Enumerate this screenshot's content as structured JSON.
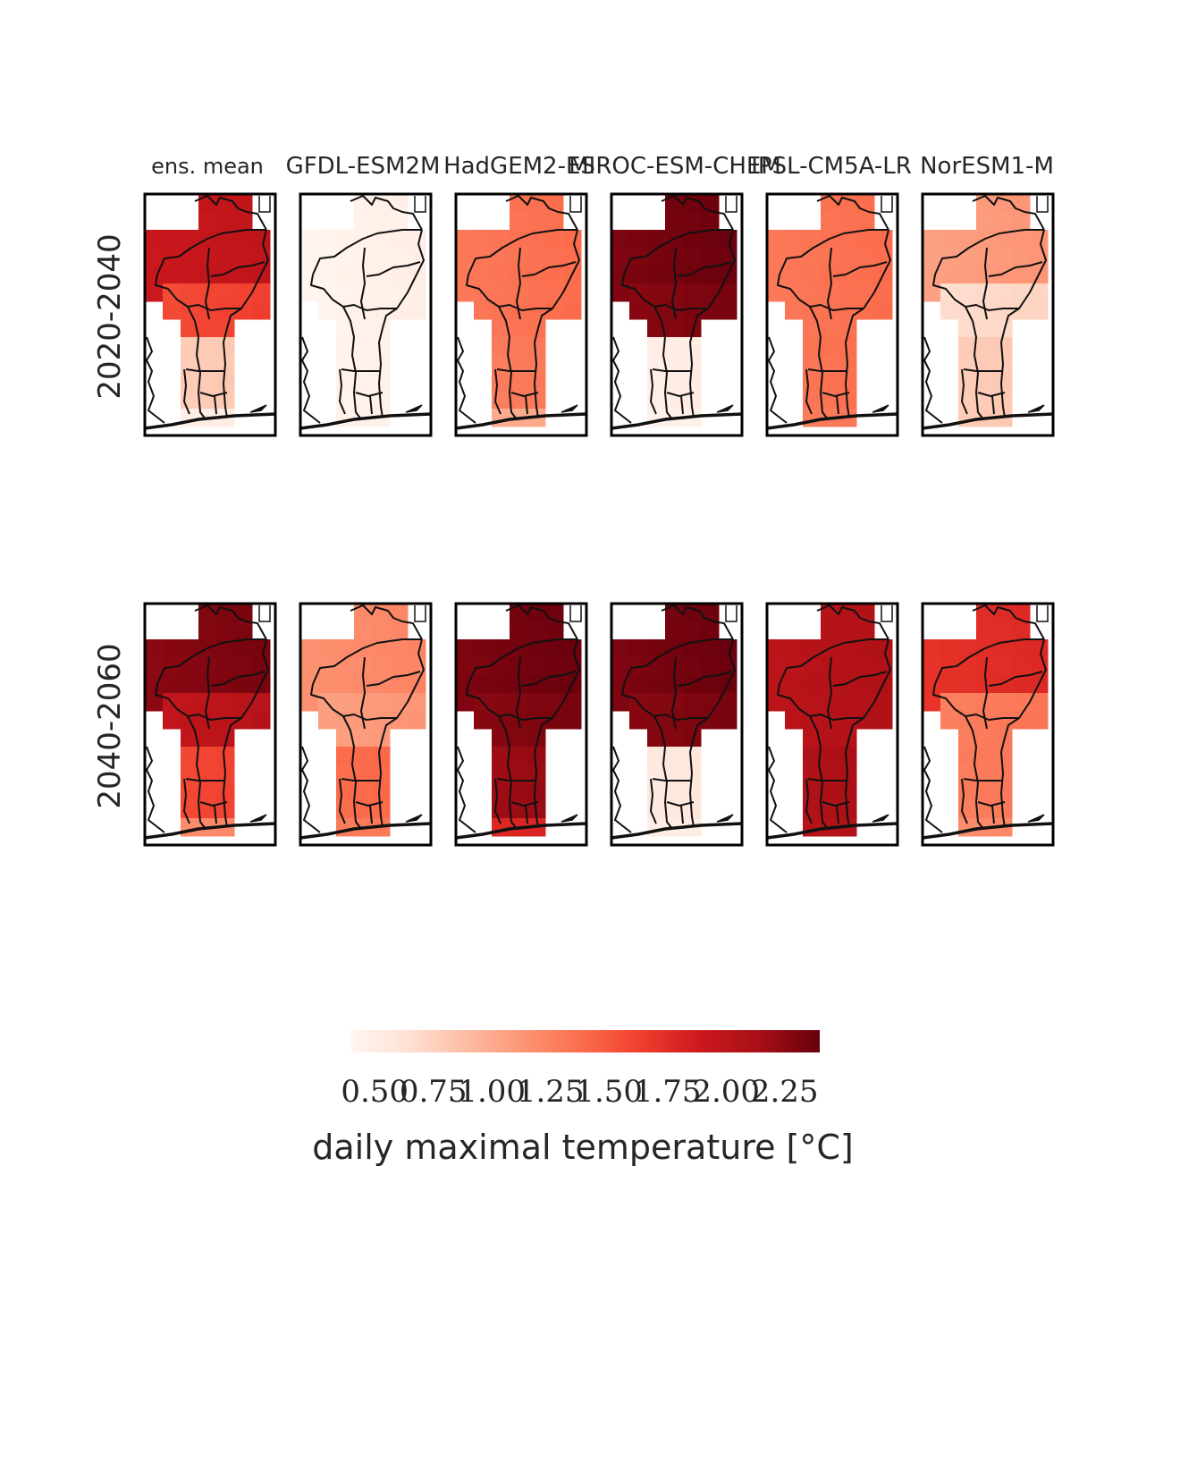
{
  "chart_data": {
    "type": "heatmap",
    "columns": [
      "ens. mean",
      "GFDL-ESM2M",
      "HadGEM2-ES",
      "MIROC-ESM-CHEM",
      "IPSL-CM5A-LR",
      "NorESM1-M"
    ],
    "rows": [
      "2020-2040",
      "2040-2060"
    ],
    "colorbar": {
      "label": "daily maximal temperature [°C]",
      "ticks": [
        "0.50",
        "0.75",
        "1.00",
        "1.25",
        "1.50",
        "1.75",
        "2.00",
        "2.25"
      ],
      "tick_values": [
        0.5,
        0.75,
        1.0,
        1.25,
        1.5,
        1.75,
        2.0,
        2.25
      ],
      "range": [
        0.4,
        2.4
      ],
      "colormap": "Reds",
      "colors": [
        "#fff5f0",
        "#fee0d2",
        "#fcbba1",
        "#fc9272",
        "#fb6a4a",
        "#ef3b2c",
        "#cb181d",
        "#a50f15",
        "#67000d"
      ]
    },
    "panels": [
      [
        {
          "north": 1.95,
          "central": 1.6,
          "south": 0.8,
          "coast": 0.5
        },
        {
          "north": 0.45,
          "central": 0.45,
          "south": 0.45,
          "coast": 0.45
        },
        {
          "north": 1.35,
          "central": 1.35,
          "south": 1.3,
          "coast": 1.0
        },
        {
          "north": 2.35,
          "central": 2.3,
          "south": 0.5,
          "coast": 0.45
        },
        {
          "north": 1.35,
          "central": 1.35,
          "south": 1.35,
          "coast": 1.3
        },
        {
          "north": 1.1,
          "central": 0.7,
          "south": 0.8,
          "coast": 0.8
        }
      ],
      [
        {
          "north": 2.3,
          "central": 2.0,
          "south": 1.6,
          "coast": 1.2
        },
        {
          "north": 1.2,
          "central": 1.1,
          "south": 1.4,
          "coast": 1.3
        },
        {
          "north": 2.35,
          "central": 2.3,
          "south": 2.2,
          "coast": 1.8
        },
        {
          "north": 2.35,
          "central": 2.3,
          "south": 0.55,
          "coast": 0.5
        },
        {
          "north": 2.05,
          "central": 2.05,
          "south": 2.1,
          "coast": 2.05
        },
        {
          "north": 1.75,
          "central": 1.3,
          "south": 1.3,
          "coast": 1.2
        }
      ]
    ]
  }
}
